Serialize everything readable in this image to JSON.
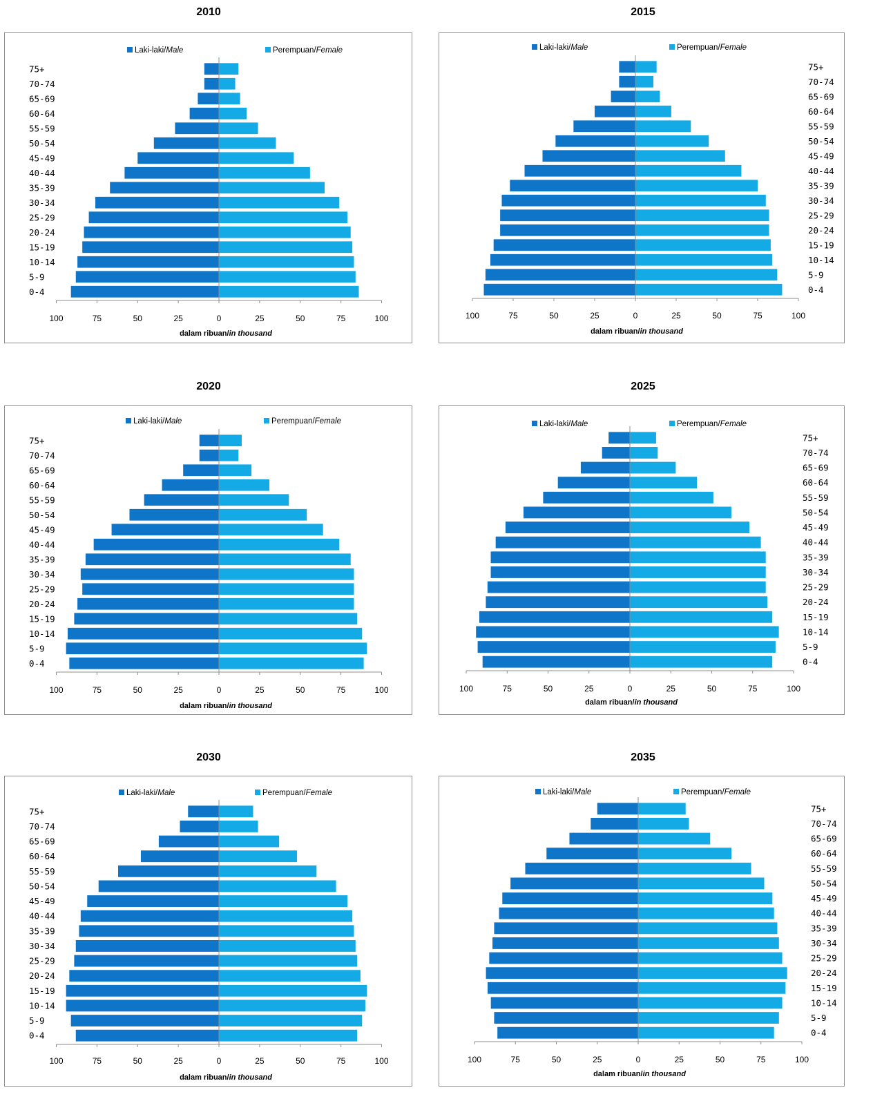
{
  "colors": {
    "male": "#0f75c9",
    "female": "#13aae6",
    "axis": "#8c8c8c"
  },
  "legend": {
    "male_label": "Laki-laki/",
    "male_label_italic": "Male",
    "female_label": "Perempuan/",
    "female_label_italic": "Female"
  },
  "xlabel": {
    "main": "dalam ribuan/",
    "italic": "in thousand"
  },
  "chart_data": [
    {
      "type": "bar",
      "orientation": "horizontal",
      "title": "2010",
      "categories": [
        "0-4",
        "5-9",
        "10-14",
        "15-19",
        "20-24",
        "25-29",
        "30-34",
        "35-39",
        "40-44",
        "45-49",
        "50-54",
        "55-59",
        "60-64",
        "65-69",
        "70-74",
        "75+"
      ],
      "series": [
        {
          "name": "Laki-laki/Male",
          "values": [
            91,
            88,
            87,
            84,
            83,
            80,
            76,
            67,
            58,
            50,
            40,
            27,
            18,
            13,
            9,
            9
          ]
        },
        {
          "name": "Perempuan/Female",
          "values": [
            86,
            84,
            83,
            82,
            81,
            79,
            74,
            65,
            56,
            46,
            35,
            24,
            17,
            13,
            10,
            12
          ]
        }
      ],
      "xticks": [
        "100",
        "75",
        "50",
        "25",
        "0",
        "25",
        "50",
        "75",
        "100"
      ],
      "xlim": [
        -100,
        100
      ],
      "xlabel": "dalam ribuan/in thousand",
      "age_labels_side": "left"
    },
    {
      "type": "bar",
      "orientation": "horizontal",
      "title": "2015",
      "categories": [
        "0-4",
        "5-9",
        "10-14",
        "15-19",
        "20-24",
        "25-29",
        "30-34",
        "35-39",
        "40-44",
        "45-49",
        "50-54",
        "55-59",
        "60-64",
        "65-69",
        "70-74",
        "75+"
      ],
      "series": [
        {
          "name": "Laki-laki/Male",
          "values": [
            93,
            92,
            89,
            87,
            83,
            83,
            82,
            77,
            68,
            57,
            49,
            38,
            25,
            15,
            10,
            10
          ]
        },
        {
          "name": "Perempuan/Female",
          "values": [
            90,
            87,
            84,
            83,
            82,
            82,
            80,
            75,
            65,
            55,
            45,
            34,
            22,
            15,
            11,
            13
          ]
        }
      ],
      "xticks": [
        "100",
        "75",
        "50",
        "25",
        "0",
        "25",
        "50",
        "75",
        "100"
      ],
      "xlim": [
        -100,
        100
      ],
      "xlabel": "dalam ribuan/in thousand",
      "age_labels_side": "right"
    },
    {
      "type": "bar",
      "orientation": "horizontal",
      "title": "2020",
      "categories": [
        "0-4",
        "5-9",
        "10-14",
        "15-19",
        "20-24",
        "25-29",
        "30-34",
        "35-39",
        "40-44",
        "45-49",
        "50-54",
        "55-59",
        "60-64",
        "65-69",
        "70-74",
        "75+"
      ],
      "series": [
        {
          "name": "Laki-laki/Male",
          "values": [
            92,
            94,
            93,
            89,
            87,
            84,
            85,
            82,
            77,
            66,
            55,
            46,
            35,
            22,
            12,
            12
          ]
        },
        {
          "name": "Perempuan/Female",
          "values": [
            89,
            91,
            88,
            85,
            83,
            83,
            83,
            81,
            74,
            64,
            54,
            43,
            31,
            20,
            12,
            14
          ]
        }
      ],
      "xticks": [
        "100",
        "75",
        "50",
        "25",
        "0",
        "25",
        "50",
        "75",
        "100"
      ],
      "xlim": [
        -100,
        100
      ],
      "xlabel": "dalam ribuan/in thousand",
      "age_labels_side": "left"
    },
    {
      "type": "bar",
      "orientation": "horizontal",
      "title": "2025",
      "categories": [
        "0-4",
        "5-9",
        "10-14",
        "15-19",
        "20-24",
        "25-29",
        "30-34",
        "35-39",
        "40-44",
        "45-49",
        "50-54",
        "55-59",
        "60-64",
        "65-69",
        "70-74",
        "75+"
      ],
      "series": [
        {
          "name": "Laki-laki/Male",
          "values": [
            90,
            93,
            94,
            92,
            88,
            87,
            85,
            85,
            82,
            76,
            65,
            53,
            44,
            30,
            17,
            13
          ]
        },
        {
          "name": "Perempuan/Female",
          "values": [
            87,
            89,
            91,
            87,
            84,
            83,
            83,
            83,
            80,
            73,
            62,
            51,
            41,
            28,
            17,
            16
          ]
        }
      ],
      "xticks": [
        "100",
        "75",
        "50",
        "25",
        "0",
        "25",
        "50",
        "75",
        "100"
      ],
      "xlim": [
        -100,
        100
      ],
      "xlabel": "dalam ribuan/in thousand",
      "age_labels_side": "right"
    },
    {
      "type": "bar",
      "orientation": "horizontal",
      "title": "2030",
      "categories": [
        "0-4",
        "5-9",
        "10-14",
        "15-19",
        "20-24",
        "25-29",
        "30-34",
        "35-39",
        "40-44",
        "45-49",
        "50-54",
        "55-59",
        "60-64",
        "65-69",
        "70-74",
        "75+"
      ],
      "series": [
        {
          "name": "Laki-laki/Male",
          "values": [
            88,
            91,
            94,
            94,
            92,
            89,
            88,
            86,
            85,
            81,
            74,
            62,
            48,
            37,
            24,
            19
          ]
        },
        {
          "name": "Perempuan/Female",
          "values": [
            85,
            88,
            90,
            91,
            87,
            85,
            84,
            83,
            82,
            79,
            72,
            60,
            48,
            37,
            24,
            21
          ]
        }
      ],
      "xticks": [
        "100",
        "75",
        "50",
        "25",
        "0",
        "25",
        "50",
        "75",
        "100"
      ],
      "xlim": [
        -100,
        100
      ],
      "xlabel": "dalam ribuan/in thousand",
      "age_labels_side": "left"
    },
    {
      "type": "bar",
      "orientation": "horizontal",
      "title": "2035",
      "categories": [
        "0-4",
        "5-9",
        "10-14",
        "15-19",
        "20-24",
        "25-29",
        "30-34",
        "35-39",
        "40-44",
        "45-49",
        "50-54",
        "55-59",
        "60-64",
        "65-69",
        "70-74",
        "75+"
      ],
      "series": [
        {
          "name": "Laki-laki/Male",
          "values": [
            86,
            88,
            90,
            92,
            93,
            91,
            89,
            88,
            85,
            83,
            78,
            69,
            56,
            42,
            29,
            25
          ]
        },
        {
          "name": "Perempuan/Female",
          "values": [
            83,
            86,
            88,
            90,
            91,
            88,
            86,
            85,
            83,
            82,
            77,
            69,
            57,
            44,
            31,
            29
          ]
        }
      ],
      "xticks": [
        "100",
        "75",
        "50",
        "25",
        "0",
        "25",
        "50",
        "75",
        "100"
      ],
      "xlim": [
        -100,
        100
      ],
      "xlabel": "dalam ribuan/in thousand",
      "age_labels_side": "right"
    }
  ]
}
